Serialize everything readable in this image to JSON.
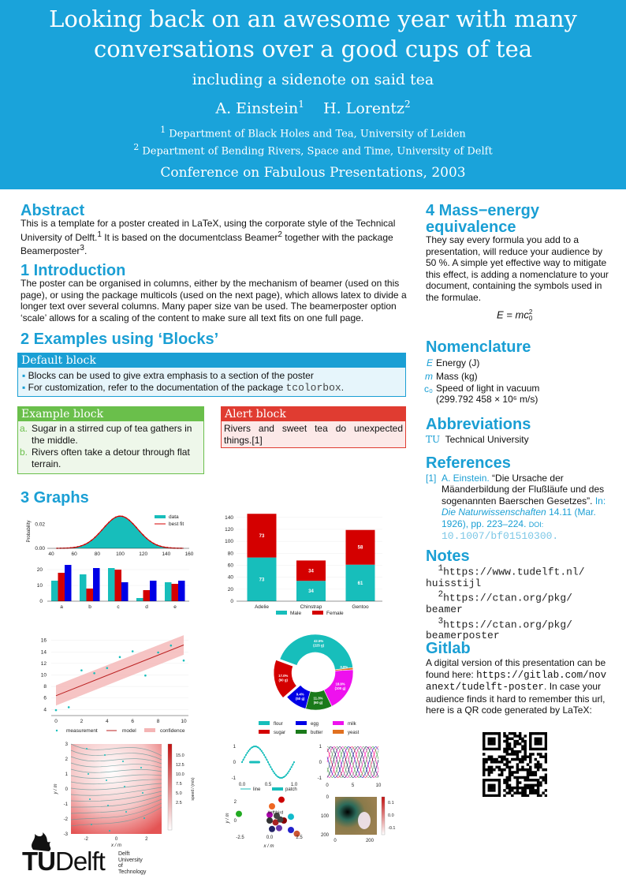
{
  "header": {
    "title_line1": "Looking back on an awesome year with many",
    "title_line2": "conversations over a good cups of tea",
    "subtitle": "including a sidenote on said tea",
    "author1": "A. Einstein",
    "author1_sup": "1",
    "author2": "H. Lorentz",
    "author2_sup": "2",
    "affil1_sup": "1",
    "affil1": "Department of Black Holes and Tea, University of Leiden",
    "affil2_sup": "2",
    "affil2": "Department of Bending Rivers, Space and Time, University of Delft",
    "conference": "Conference on Fabulous Presentations, 2003"
  },
  "abstract": {
    "heading": "Abstract",
    "text1": "This is a template for a poster created in LaTeX, using the corporate style of the Technical University of Delft.",
    "sup1": "1",
    "text2": " It is based on the documentclass Beamer",
    "sup2": "2",
    "text3": " together with the package Beamerposter",
    "sup3": "3",
    "text4": "."
  },
  "intro": {
    "heading": "1 Introduction",
    "text": "The poster can be organised in columns, either by the mechanism of beamer (used on this page), or using the package multicols (used on the next page), which allows latex to divide a longer text over several columns. Many paper size van be used. The beamerposter option ‘scale’ allows for a scaling of the content to make sure all text fits on one full page."
  },
  "examples": {
    "heading": "2 Examples using ‘Blocks’",
    "default_block": {
      "title": "Default block",
      "item1": "Blocks can be used to give extra emphasis to a section of the poster",
      "item2": "For customization, refer to the documentation of the package ",
      "item2_code": "tcolorbox",
      "item2_end": "."
    },
    "example_block": {
      "title": "Example block",
      "items": [
        {
          "marker": "a.",
          "text": "Sugar in a stirred cup of tea gathers in the middle."
        },
        {
          "marker": "b.",
          "text": "Rivers often take a detour through flat terrain."
        }
      ]
    },
    "alert_block": {
      "title": "Alert block",
      "text": "Rivers and sweet tea do unexpected things.[1]"
    }
  },
  "graphs": {
    "heading": "3 Graphs"
  },
  "colors": {
    "accent": "#1aa3da",
    "teal": "#17bebb",
    "red": "#d40000",
    "blue": "#0000e6",
    "green": "#6abf4b",
    "alert": "#e03c31"
  },
  "chart_data": [
    {
      "type": "area",
      "ylabel": "Probability",
      "xlim": [
        40,
        160
      ],
      "ylim": [
        0,
        0.028
      ],
      "xticks": [
        "40",
        "60",
        "80",
        "100",
        "120",
        "140",
        "160"
      ],
      "yticks": [
        "0.00",
        "0.02"
      ],
      "legend": [
        "data",
        "best fit"
      ],
      "mean": 100,
      "std": 15,
      "legend_position": "top-right"
    },
    {
      "type": "bar",
      "categories": [
        "a",
        "b",
        "c",
        "d",
        "e"
      ],
      "series": [
        {
          "values": [
            13,
            17,
            21,
            2,
            12
          ]
        },
        {
          "values": [
            18,
            8,
            20,
            7,
            11
          ]
        },
        {
          "values": [
            23,
            21,
            12,
            13,
            13
          ]
        }
      ],
      "ylim": [
        0,
        25
      ],
      "yticks": [
        "0",
        "10",
        "20"
      ]
    },
    {
      "type": "bar",
      "stacked": true,
      "categories": [
        "Adelie",
        "Chinstrap",
        "Gentoo"
      ],
      "series": [
        {
          "name": "Male",
          "values": [
            73,
            34,
            61
          ]
        },
        {
          "name": "Female",
          "values": [
            73,
            34,
            58
          ]
        }
      ],
      "ylim": [
        0,
        145
      ],
      "yticks": [
        "0",
        "20",
        "40",
        "60",
        "80",
        "100",
        "120",
        "140"
      ],
      "legend_position": "bottom"
    },
    {
      "type": "scatter",
      "x": [
        0,
        1,
        2,
        3,
        4,
        5,
        6,
        7,
        8,
        9,
        10
      ],
      "y": [
        3.9,
        4.4,
        10.8,
        10.3,
        11.2,
        13.1,
        14.1,
        9.9,
        13.9,
        15.1,
        12.5
      ],
      "model": [
        6.4,
        15.2
      ],
      "xlim": [
        0,
        10
      ],
      "ylim": [
        3.5,
        16.5
      ],
      "xticks": [
        "0",
        "2",
        "4",
        "6",
        "8",
        "10"
      ],
      "yticks": [
        "4",
        "6",
        "8",
        "10",
        "12",
        "14",
        "16"
      ],
      "legend": [
        "measurement",
        "model",
        "confidence"
      ],
      "legend_position": "bottom"
    },
    {
      "type": "pie",
      "donut": true,
      "labels": [
        "flour",
        "yeast",
        "milk",
        "butter",
        "egg",
        "sugar"
      ],
      "values": [
        225,
        5,
        100,
        60,
        50,
        90
      ],
      "data_labels": [
        "42.5%\n(225 g)",
        "0.9%\n(5 g)",
        "18.9%\n(100 g)",
        "11.3%\n(60 g)",
        "9.4%\n(50 g)",
        "17.0%\n(90 g)"
      ],
      "legend_order": [
        "flour",
        "sugar",
        "egg",
        "butter",
        "milk",
        "yeast"
      ],
      "legend_position": "bottom"
    },
    {
      "type": "heatmap",
      "xlabel": "x / m",
      "ylabel": "y / m",
      "colorbar_label": "speed / (m/s)",
      "xticks": [
        "-2",
        "0",
        "2"
      ],
      "yticks": [
        "3",
        "2",
        "1",
        "0",
        "-1",
        "-2",
        "-3"
      ],
      "cbticks": [
        "15.0",
        "12.5",
        "10.0",
        "7.5",
        "5.0",
        "2.5"
      ]
    },
    {
      "type": "line",
      "xticks": [
        "0.0",
        "0.5",
        "1.0"
      ],
      "yticks": [
        "1",
        "0",
        "-1"
      ],
      "legend": [
        "line",
        "patch"
      ]
    },
    {
      "type": "scatter",
      "xlabel": "x / m",
      "ylabel": "y / m",
      "xticks": [
        "-2.5",
        "0.0",
        "2.5"
      ],
      "yticks": [
        "2",
        "0"
      ],
      "annotation": "\\left\\bird"
    },
    {
      "type": "line",
      "xticks": [
        "0",
        "5",
        "10"
      ],
      "yticks": [
        "1",
        "0",
        "-1"
      ]
    },
    {
      "type": "heatmap",
      "xticks": [
        "0",
        "200"
      ],
      "yticks": [
        "0",
        "100",
        "200"
      ],
      "cbticks": [
        "0.1",
        "0.0",
        "-0.1"
      ]
    }
  ],
  "mass": {
    "heading_line1": "4 Mass−energy",
    "heading_line2": "equivalence",
    "text": "They say every formula you add to a presentation, will reduce your audience by 50 %. A simple yet effective way to mitigate this effect, is adding a nomenclature to your document, containing the symbols used in the formulae.",
    "formula": "E = mc",
    "formula_sup": "2",
    "formula_sub": "0"
  },
  "nomenclature": {
    "heading": "Nomenclature",
    "items": [
      {
        "sym": "E",
        "desc": "Energy (J)"
      },
      {
        "sym": "m",
        "desc": "Mass (kg)"
      },
      {
        "sym": "c₀",
        "desc": "Speed of light in vacuum",
        "desc2": "(299.792 458 × 10⁶ m/s)"
      }
    ]
  },
  "abbreviations": {
    "heading": "Abbreviations",
    "items": [
      {
        "abbr": "TU",
        "desc": "Technical University"
      }
    ]
  },
  "references": {
    "heading": "References",
    "items": [
      {
        "num": "[1]",
        "author": "A. Einstein.",
        "title": "“Die Ursache der Mäanderbildung der Flußläufe und des sogenannten Baerschen Gesetzes”.",
        "in": "In:",
        "journal": "Die Naturwissenschaften",
        "details": "14.11 (Mar. 1926), pp. 223–224.",
        "doi_label": "DOI:",
        "doi": "10.1007/bf01510300."
      }
    ]
  },
  "notes": {
    "heading": "Notes",
    "items": [
      {
        "sup": "1",
        "l1": "https://www.tudelft.nl/",
        "l2": "huisstijl"
      },
      {
        "sup": "2",
        "l1": "https://ctan.org/pkg/",
        "l2": "beamer"
      },
      {
        "sup": "3",
        "l1": "https://ctan.org/pkg/",
        "l2": "beamerposter"
      }
    ]
  },
  "gitlab": {
    "heading": "Gitlab",
    "text1": "A digital version of this presentation can be found here: ",
    "url": "https://gitlab.com/novanext/tudelft-poster",
    "text2": ". In case your audience finds it hard to remember this url, here is a QR code generated by LaTeX:"
  },
  "logo": {
    "tu": "TU",
    "delft": "Delft",
    "sub1": "Delft",
    "sub2": "University of",
    "sub3": "Technology"
  }
}
